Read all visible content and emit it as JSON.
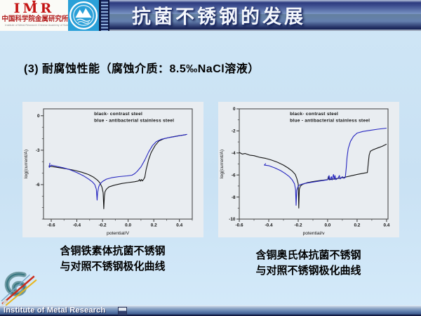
{
  "header": {
    "imr_logo": {
      "acronym": "IMR",
      "chinese_name": "中国科学院金属研究所",
      "english_name": "Institute of Metal Research Chinese Academy of Sciences"
    },
    "title": "抗菌不锈钢的发展"
  },
  "subtitle": "(3) 耐腐蚀性能（腐蚀介质：8.5‰NaCl溶液）",
  "captions": {
    "ferritic_line1": "含铜铁素体抗菌不锈钢",
    "ferritic_line2": "与对照不锈钢极化曲线",
    "austenitic_line1": "含铜奥氏体抗菌不锈钢",
    "austenitic_line2": "与对照不锈钢极化曲线"
  },
  "footer": {
    "label": "Institute of Metal Research"
  },
  "colors": {
    "slide_bg": "#cde4f4",
    "titlebar_dark": "#1d2a66",
    "titlebar_light": "#7b96c5",
    "chart_bg": "#e9edf1",
    "curve_black": "#141414",
    "curve_blue": "#2626c0",
    "imr_red": "#c41414",
    "univ_blue": "#2aa0d8"
  },
  "chart_data": [
    {
      "type": "line",
      "title": "Polarization curves - Cu-bearing ferritic antibacterial stainless steel vs contrast steel",
      "xlabel": "potential/V",
      "ylabel": "log(current/A)",
      "xlim": [
        -0.66,
        0.5
      ],
      "ylim": [
        -9.0,
        0.6
      ],
      "grid": false,
      "legend_pos": "top-center-inside",
      "xticks": {
        "values": [
          -0.6,
          -0.4,
          -0.2,
          0,
          0.2,
          0.4
        ],
        "labels": [
          "-0.6",
          "-0.4",
          "-0.2",
          "0.0",
          "0.2",
          "0.4"
        ]
      },
      "yticks": {
        "values": [
          0,
          -3,
          -6
        ],
        "labels": [
          "0",
          "-3",
          "-6"
        ]
      },
      "x_minor_step": 0.1,
      "y_minor_step": 1,
      "legend": [
        "black-  contrast steel",
        "blue -  antibacterial stainless steel"
      ],
      "series": [
        {
          "name": "contrast steel",
          "color": "#141414",
          "points": [
            [
              -0.62,
              -4.38
            ],
            [
              -0.55,
              -4.5
            ],
            [
              -0.48,
              -4.62
            ],
            [
              -0.42,
              -4.75
            ],
            [
              -0.36,
              -4.92
            ],
            [
              -0.31,
              -5.12
            ],
            [
              -0.27,
              -5.35
            ],
            [
              -0.24,
              -5.6
            ],
            [
              -0.22,
              -5.85
            ],
            [
              -0.205,
              -6.2
            ],
            [
              -0.195,
              -6.7
            ],
            [
              -0.19,
              -8.1
            ],
            [
              -0.185,
              -7.0
            ],
            [
              -0.18,
              -6.6
            ],
            [
              -0.17,
              -6.4
            ],
            [
              -0.15,
              -6.2
            ],
            [
              -0.11,
              -6.05
            ],
            [
              -0.05,
              -5.9
            ],
            [
              0.0,
              -5.82
            ],
            [
              0.05,
              -5.75
            ],
            [
              0.08,
              -5.68
            ],
            [
              0.09,
              -5.55
            ],
            [
              0.095,
              -5.7
            ],
            [
              0.105,
              -5.55
            ],
            [
              0.11,
              -5.68
            ],
            [
              0.12,
              -5.55
            ],
            [
              0.13,
              -5.35
            ],
            [
              0.14,
              -4.7
            ],
            [
              0.16,
              -3.8
            ],
            [
              0.18,
              -3.2
            ],
            [
              0.21,
              -2.6
            ],
            [
              0.24,
              -2.2
            ],
            [
              0.28,
              -2.0
            ],
            [
              0.33,
              -1.87
            ],
            [
              0.39,
              -1.75
            ],
            [
              0.45,
              -1.65
            ]
          ]
        },
        {
          "name": "antibacterial stainless steel",
          "color": "#2626c0",
          "points": [
            [
              -0.61,
              -4.1
            ],
            [
              -0.615,
              -4.5
            ],
            [
              -0.6,
              -4.3
            ],
            [
              -0.55,
              -4.42
            ],
            [
              -0.5,
              -4.55
            ],
            [
              -0.45,
              -4.72
            ],
            [
              -0.4,
              -4.95
            ],
            [
              -0.35,
              -5.22
            ],
            [
              -0.31,
              -5.5
            ],
            [
              -0.28,
              -5.75
            ],
            [
              -0.26,
              -6.0
            ],
            [
              -0.248,
              -6.4
            ],
            [
              -0.242,
              -7.35
            ],
            [
              -0.238,
              -6.7
            ],
            [
              -0.23,
              -6.2
            ],
            [
              -0.22,
              -5.95
            ],
            [
              -0.2,
              -5.72
            ],
            [
              -0.17,
              -5.52
            ],
            [
              -0.13,
              -5.4
            ],
            [
              -0.07,
              -5.3
            ],
            [
              -0.01,
              -5.24
            ],
            [
              0.03,
              -5.18
            ],
            [
              0.05,
              -5.05
            ],
            [
              0.07,
              -4.85
            ],
            [
              0.1,
              -4.45
            ],
            [
              0.13,
              -3.85
            ],
            [
              0.16,
              -3.15
            ],
            [
              0.19,
              -2.6
            ],
            [
              0.22,
              -2.25
            ],
            [
              0.26,
              -2.05
            ],
            [
              0.31,
              -1.92
            ],
            [
              0.37,
              -1.8
            ],
            [
              0.43,
              -1.68
            ],
            [
              0.46,
              -1.62
            ]
          ]
        }
      ]
    },
    {
      "type": "line",
      "title": "Polarization curves - Cu-bearing austenitic antibacterial stainless steel vs contrast steel",
      "xlabel": "potential/v",
      "ylabel": "log(current/A)",
      "xlim": [
        -0.6,
        0.41
      ],
      "ylim": [
        -10,
        0
      ],
      "grid": false,
      "legend_pos": "top-center-inside",
      "xticks": {
        "values": [
          -0.6,
          -0.4,
          -0.2,
          0,
          0.2,
          0.4
        ],
        "labels": [
          "-0.6",
          "-0.4",
          "-0.2",
          "0.0",
          "0.2",
          "0.4"
        ]
      },
      "yticks": {
        "values": [
          0,
          -2,
          -4,
          -6,
          -8,
          -10
        ],
        "labels": [
          "0",
          "-2",
          "-4",
          "-6",
          "-8",
          "-10"
        ]
      },
      "x_minor_step": 0.1,
      "y_minor_step": 1,
      "legend": [
        "black-  contrast steel",
        "blue -  antibacterial stainless steel"
      ],
      "series": [
        {
          "name": "contrast steel",
          "color": "#141414",
          "points": [
            [
              -0.6,
              -3.95
            ],
            [
              -0.58,
              -4.1
            ],
            [
              -0.56,
              -4.05
            ],
            [
              -0.53,
              -4.2
            ],
            [
              -0.5,
              -4.25
            ],
            [
              -0.46,
              -4.4
            ],
            [
              -0.42,
              -4.5
            ],
            [
              -0.38,
              -4.65
            ],
            [
              -0.34,
              -4.85
            ],
            [
              -0.3,
              -5.1
            ],
            [
              -0.27,
              -5.35
            ],
            [
              -0.24,
              -5.65
            ],
            [
              -0.22,
              -5.95
            ],
            [
              -0.21,
              -6.3
            ],
            [
              -0.2,
              -6.8
            ],
            [
              -0.196,
              -9.0
            ],
            [
              -0.192,
              -7.3
            ],
            [
              -0.185,
              -7.0
            ],
            [
              -0.17,
              -6.85
            ],
            [
              -0.14,
              -6.7
            ],
            [
              -0.1,
              -6.6
            ],
            [
              -0.05,
              -6.5
            ],
            [
              0.0,
              -6.42
            ],
            [
              0.005,
              -6.15
            ],
            [
              0.01,
              -6.42
            ],
            [
              0.05,
              -6.35
            ],
            [
              0.1,
              -6.25
            ],
            [
              0.15,
              -6.1
            ],
            [
              0.2,
              -5.95
            ],
            [
              0.24,
              -5.85
            ],
            [
              0.27,
              -5.78
            ],
            [
              0.276,
              -4.9
            ],
            [
              0.282,
              -4.2
            ],
            [
              0.29,
              -3.85
            ],
            [
              0.31,
              -3.7
            ],
            [
              0.34,
              -3.55
            ],
            [
              0.37,
              -3.4
            ],
            [
              0.4,
              -3.2
            ]
          ]
        },
        {
          "name": "antibacterial stainless steel",
          "color": "#2626c0",
          "points": [
            [
              -0.42,
              -4.95
            ],
            [
              -0.43,
              -5.1
            ],
            [
              -0.4,
              -5.15
            ],
            [
              -0.36,
              -5.35
            ],
            [
              -0.32,
              -5.6
            ],
            [
              -0.29,
              -5.85
            ],
            [
              -0.26,
              -6.15
            ],
            [
              -0.24,
              -6.45
            ],
            [
              -0.225,
              -6.8
            ],
            [
              -0.218,
              -7.3
            ],
            [
              -0.214,
              -8.75
            ],
            [
              -0.21,
              -7.4
            ],
            [
              -0.2,
              -7.0
            ],
            [
              -0.19,
              -6.9
            ],
            [
              -0.16,
              -6.78
            ],
            [
              -0.12,
              -6.68
            ],
            [
              -0.07,
              -6.58
            ],
            [
              -0.02,
              -6.48
            ],
            [
              0.0,
              -6.44
            ],
            [
              0.01,
              -6.05
            ],
            [
              0.015,
              -6.45
            ],
            [
              0.025,
              -6.15
            ],
            [
              0.03,
              -6.45
            ],
            [
              0.04,
              -5.95
            ],
            [
              0.045,
              -6.4
            ],
            [
              0.05,
              -6.05
            ],
            [
              0.055,
              -6.42
            ],
            [
              0.07,
              -6.3
            ],
            [
              0.08,
              -6.05
            ],
            [
              0.085,
              -6.35
            ],
            [
              0.1,
              -6.15
            ],
            [
              0.11,
              -6.3
            ],
            [
              0.12,
              -6.22
            ],
            [
              0.126,
              -5.4
            ],
            [
              0.132,
              -4.4
            ],
            [
              0.14,
              -3.6
            ],
            [
              0.155,
              -2.95
            ],
            [
              0.175,
              -2.5
            ],
            [
              0.2,
              -2.2
            ],
            [
              0.24,
              -2.05
            ],
            [
              0.29,
              -1.95
            ],
            [
              0.34,
              -1.85
            ],
            [
              0.4,
              -1.75
            ]
          ]
        }
      ]
    }
  ]
}
